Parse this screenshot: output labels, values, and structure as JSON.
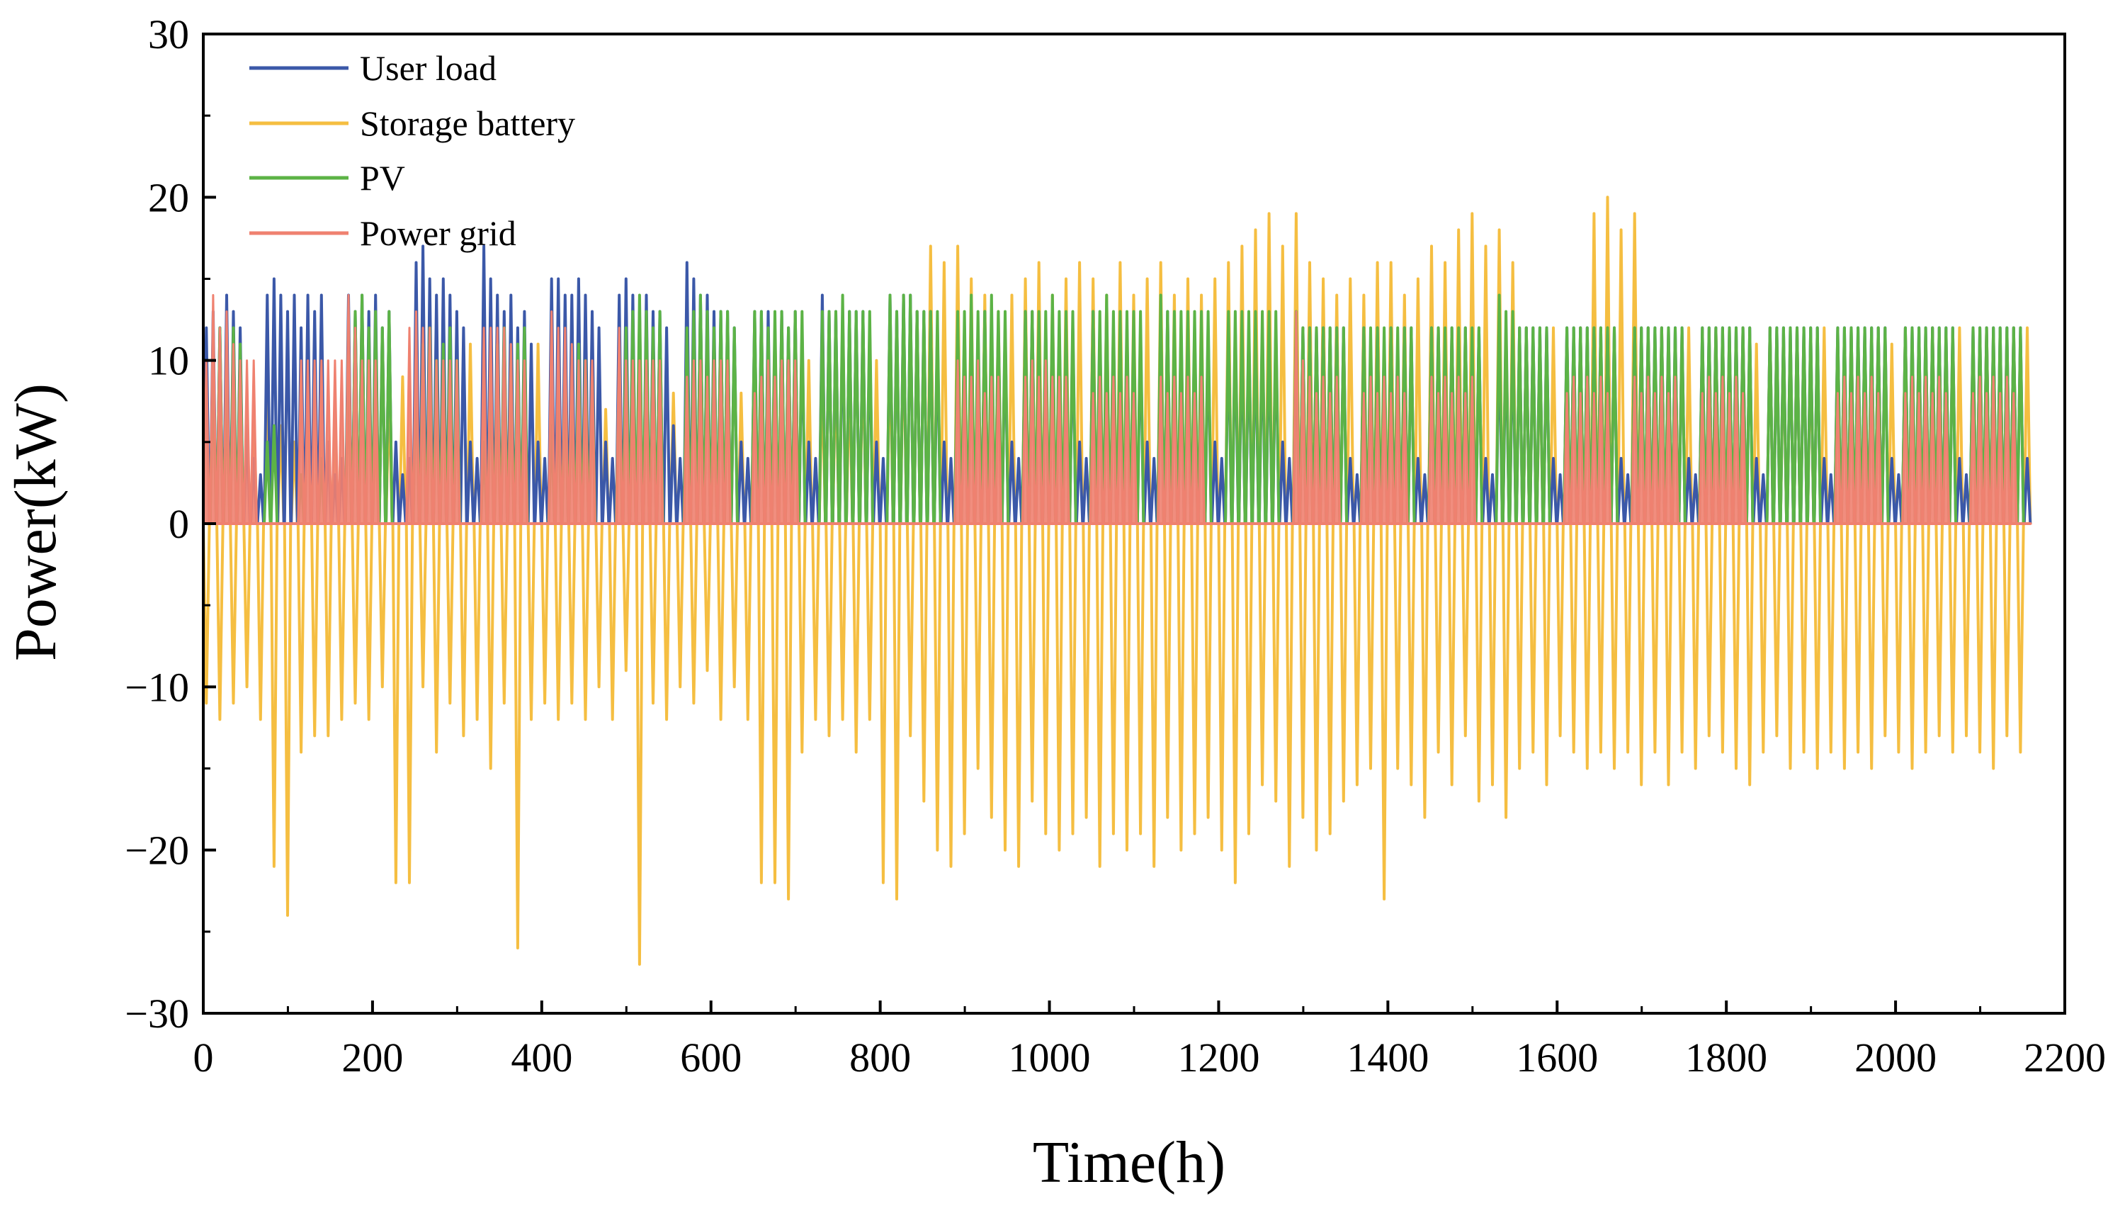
{
  "chart_data": {
    "type": "line",
    "title": "",
    "xlabel": "Time(h)",
    "ylabel": "Power(kW)",
    "xlim": [
      0,
      2200
    ],
    "ylim": [
      -30,
      30
    ],
    "x_ticks": [
      0,
      200,
      400,
      600,
      800,
      1000,
      1200,
      1400,
      1600,
      1800,
      2000,
      2200
    ],
    "y_ticks": [
      -30,
      -20,
      -10,
      0,
      10,
      20,
      30
    ],
    "x_tick_labels": [
      "0",
      "200",
      "400",
      "600",
      "800",
      "1000",
      "1200",
      "1400",
      "1600",
      "1800",
      "2000",
      "2200"
    ],
    "y_tick_labels": [
      "−30",
      "−20",
      "−10",
      "0",
      "10",
      "20",
      "30"
    ],
    "legend_position": "top-left",
    "x_end": 2160,
    "sampling": "one value per 8 h block (downsampled from the hourly series; approximate readings)",
    "series": [
      {
        "name": "User load",
        "color": "#3B58A8",
        "values": [
          12,
          13,
          12,
          14,
          13,
          12,
          6,
          4,
          3,
          14,
          15,
          14,
          13,
          14,
          12,
          14,
          13,
          14,
          5,
          3,
          4,
          14,
          13,
          14,
          13,
          14,
          12,
          13,
          5,
          3,
          4,
          16,
          17,
          15,
          14,
          15,
          14,
          13,
          12,
          5,
          4,
          17,
          15,
          14,
          13,
          14,
          12,
          13,
          11,
          5,
          4,
          15,
          15,
          14,
          14,
          15,
          14,
          13,
          12,
          5,
          4,
          14,
          15,
          14,
          13,
          14,
          13,
          13,
          12,
          6,
          4,
          16,
          15,
          14,
          14,
          13,
          13,
          13,
          12,
          5,
          4,
          13,
          13,
          13,
          12,
          13,
          12,
          13,
          12,
          5,
          4,
          14,
          13,
          13,
          13,
          13,
          13,
          13,
          12,
          5,
          4,
          14,
          13,
          14,
          14,
          13,
          13,
          13,
          12,
          5,
          4,
          12,
          12,
          13,
          12,
          13,
          12,
          12,
          12,
          5,
          4,
          13,
          13,
          12,
          12,
          12,
          12,
          12,
          12,
          5,
          4,
          13,
          12,
          12,
          12,
          12,
          12,
          12,
          12,
          5,
          4,
          13,
          13,
          12,
          12,
          12,
          12,
          12,
          12,
          5,
          4,
          12,
          12,
          12,
          12,
          12,
          12,
          12,
          12,
          5,
          4,
          12,
          12,
          12,
          12,
          12,
          12,
          12,
          12,
          4,
          3,
          12,
          11,
          12,
          11,
          12,
          11,
          12,
          12,
          4,
          3,
          12,
          12,
          11,
          12,
          11,
          12,
          11,
          12,
          4,
          3,
          12,
          12,
          12,
          12,
          12,
          12,
          12,
          12,
          4,
          3,
          12,
          12,
          12,
          12,
          12,
          12,
          12,
          12,
          4,
          3,
          12,
          12,
          12,
          12,
          12,
          12,
          12,
          12,
          4,
          3,
          12,
          12,
          12,
          12,
          12,
          12,
          12,
          12,
          4,
          3,
          12,
          12,
          12,
          12,
          12,
          12,
          12,
          12,
          4,
          3,
          12,
          12,
          12,
          12,
          12,
          12,
          12,
          12,
          4,
          3,
          12,
          12,
          12,
          12,
          12,
          12,
          12,
          12,
          4,
          3,
          12,
          12,
          12,
          12,
          12,
          12,
          12,
          12,
          4
        ]
      },
      {
        "name": "Storage battery",
        "color": "#F5BE41",
        "values": [
          -11,
          10,
          -12,
          8,
          -11,
          9,
          -10,
          7,
          -12,
          8,
          -21,
          6,
          -24,
          5,
          -14,
          9,
          -13,
          8,
          -13,
          7,
          -12,
          9,
          -11,
          10,
          -12,
          6,
          -10,
          8,
          -22,
          9,
          -22,
          11,
          -10,
          9,
          -14,
          10,
          -11,
          9,
          -13,
          11,
          -12,
          10,
          -15,
          8,
          -11,
          9,
          -26,
          10,
          -12,
          11,
          -11,
          9,
          -12,
          10,
          -11,
          8,
          -12,
          9,
          -10,
          7,
          -12,
          10,
          -9,
          8,
          -27,
          9,
          -11,
          10,
          -12,
          8,
          -10,
          9,
          -11,
          8,
          -9,
          7,
          -12,
          9,
          -10,
          8,
          -12,
          9,
          -22,
          10,
          -22,
          9,
          -23,
          9,
          -14,
          10,
          -12,
          9,
          -13,
          10,
          -12,
          9,
          -14,
          11,
          -12,
          10,
          -22,
          11,
          -23,
          12,
          -13,
          13,
          -17,
          17,
          -20,
          16,
          -21,
          17,
          -19,
          15,
          -15,
          14,
          -18,
          13,
          -20,
          14,
          -21,
          15,
          -17,
          16,
          -19,
          14,
          -20,
          15,
          -19,
          16,
          -18,
          15,
          -21,
          14,
          -19,
          16,
          -20,
          14,
          -19,
          15,
          -21,
          16,
          -18,
          14,
          -20,
          15,
          -19,
          14,
          -18,
          15,
          -20,
          16,
          -22,
          17,
          -19,
          18,
          -16,
          19,
          -17,
          17,
          -21,
          19,
          -18,
          16,
          -20,
          15,
          -19,
          14,
          -17,
          15,
          -16,
          14,
          -15,
          16,
          -23,
          16,
          -15,
          14,
          -16,
          15,
          -18,
          17,
          -14,
          16,
          -16,
          18,
          -13,
          19,
          -17,
          17,
          -16,
          18,
          -18,
          16,
          -15,
          12,
          -14,
          11,
          -16,
          12,
          -13,
          11,
          -14,
          12,
          -15,
          19,
          -14,
          20,
          -15,
          18,
          -14,
          19,
          -16,
          12,
          -14,
          12,
          -16,
          11,
          -14,
          12,
          -15,
          11,
          -13,
          12,
          -14,
          11,
          -15,
          12,
          -16,
          11,
          -14,
          12,
          -13,
          11,
          -15,
          12,
          -14,
          11,
          -15,
          12,
          -14,
          11,
          -15,
          12,
          -14,
          11,
          -15,
          12,
          -13,
          11,
          -14,
          12,
          -15,
          11,
          -14,
          12,
          -13,
          11,
          -14,
          12,
          -13,
          11,
          -14,
          12,
          -15,
          11,
          -13,
          12,
          -14,
          12
        ]
      },
      {
        "name": "PV",
        "color": "#5CB346",
        "values": [
          0,
          11,
          12,
          10,
          12,
          11,
          0,
          0,
          0,
          5,
          6,
          0,
          0,
          0,
          3,
          0,
          0,
          4,
          0,
          0,
          0,
          12,
          13,
          14,
          12,
          13,
          12,
          13,
          0,
          0,
          0,
          10,
          11,
          12,
          10,
          11,
          12,
          10,
          0,
          0,
          0,
          5,
          10,
          11,
          12,
          10,
          11,
          12,
          0,
          0,
          0,
          6,
          8,
          10,
          9,
          11,
          10,
          9,
          0,
          0,
          0,
          10,
          12,
          13,
          14,
          13,
          12,
          13,
          0,
          0,
          0,
          12,
          13,
          14,
          13,
          12,
          13,
          13,
          12,
          0,
          0,
          13,
          13,
          12,
          13,
          13,
          12,
          13,
          13,
          0,
          0,
          13,
          13,
          13,
          14,
          13,
          13,
          13,
          13,
          0,
          0,
          14,
          13,
          14,
          14,
          13,
          13,
          13,
          13,
          0,
          0,
          13,
          13,
          14,
          13,
          13,
          14,
          13,
          13,
          0,
          0,
          13,
          13,
          13,
          13,
          14,
          13,
          13,
          13,
          0,
          0,
          13,
          13,
          14,
          13,
          13,
          13,
          13,
          13,
          0,
          0,
          14,
          13,
          13,
          13,
          13,
          13,
          13,
          13,
          0,
          0,
          13,
          13,
          13,
          13,
          13,
          13,
          13,
          13,
          0,
          0,
          13,
          12,
          12,
          12,
          12,
          12,
          12,
          12,
          0,
          0,
          12,
          12,
          12,
          12,
          12,
          12,
          12,
          12,
          0,
          0,
          12,
          12,
          12,
          12,
          12,
          12,
          12,
          12,
          0,
          0,
          14,
          13,
          13,
          12,
          12,
          12,
          12,
          12,
          0,
          0,
          12,
          12,
          12,
          12,
          12,
          12,
          12,
          12,
          0,
          0,
          12,
          12,
          12,
          12,
          12,
          12,
          12,
          12,
          0,
          0,
          12,
          12,
          12,
          12,
          12,
          12,
          12,
          12,
          0,
          0,
          12,
          12,
          12,
          12,
          12,
          12,
          12,
          12,
          0,
          0,
          12,
          12,
          12,
          12,
          12,
          12,
          12,
          12,
          0,
          0,
          12,
          12,
          12,
          12,
          12,
          12,
          12,
          12,
          0,
          0,
          12,
          12,
          12,
          12,
          12,
          12,
          12,
          12,
          0
        ]
      },
      {
        "name": "Power grid",
        "color": "#EF8170",
        "values": [
          10,
          14,
          12,
          13,
          11,
          10,
          10,
          10,
          0,
          0,
          0,
          0,
          0,
          0,
          10,
          10,
          10,
          10,
          10,
          10,
          10,
          14,
          12,
          10,
          10,
          10,
          0,
          0,
          0,
          0,
          12,
          13,
          12,
          12,
          10,
          10,
          10,
          10,
          0,
          0,
          0,
          12,
          12,
          12,
          12,
          11,
          10,
          10,
          0,
          0,
          0,
          13,
          12,
          12,
          11,
          10,
          10,
          10,
          0,
          0,
          0,
          12,
          10,
          10,
          10,
          10,
          10,
          10,
          0,
          0,
          0,
          9,
          10,
          10,
          9,
          10,
          10,
          10,
          0,
          0,
          0,
          8,
          9,
          10,
          9,
          10,
          10,
          10,
          0,
          0,
          0,
          0,
          0,
          0,
          0,
          0,
          0,
          0,
          0,
          0,
          0,
          0,
          0,
          0,
          0,
          0,
          0,
          0,
          0,
          0,
          0,
          10,
          9,
          9,
          10,
          8,
          9,
          9,
          0,
          0,
          0,
          9,
          10,
          9,
          10,
          9,
          9,
          9,
          0,
          0,
          0,
          8,
          9,
          8,
          9,
          8,
          9,
          8,
          0,
          0,
          0,
          9,
          8,
          9,
          8,
          9,
          8,
          9,
          0,
          0,
          0,
          0,
          0,
          0,
          0,
          0,
          0,
          0,
          0,
          0,
          0,
          13,
          10,
          9,
          8,
          9,
          8,
          9,
          0,
          0,
          0,
          8,
          9,
          8,
          9,
          8,
          9,
          8,
          0,
          0,
          0,
          9,
          8,
          9,
          8,
          9,
          8,
          9,
          0,
          0,
          0,
          0,
          0,
          0,
          0,
          0,
          0,
          0,
          0,
          0,
          0,
          8,
          9,
          8,
          9,
          8,
          9,
          8,
          0,
          0,
          0,
          9,
          8,
          9,
          8,
          9,
          8,
          9,
          0,
          0,
          0,
          8,
          9,
          8,
          9,
          8,
          9,
          8,
          0,
          0,
          0,
          0,
          0,
          0,
          0,
          0,
          0,
          0,
          0,
          0,
          0,
          8,
          9,
          8,
          9,
          8,
          9,
          8,
          0,
          0,
          0,
          8,
          9,
          8,
          9,
          8,
          9,
          8,
          0,
          0,
          0,
          8,
          9,
          8,
          9,
          8,
          9,
          8,
          0,
          0
        ]
      }
    ]
  }
}
